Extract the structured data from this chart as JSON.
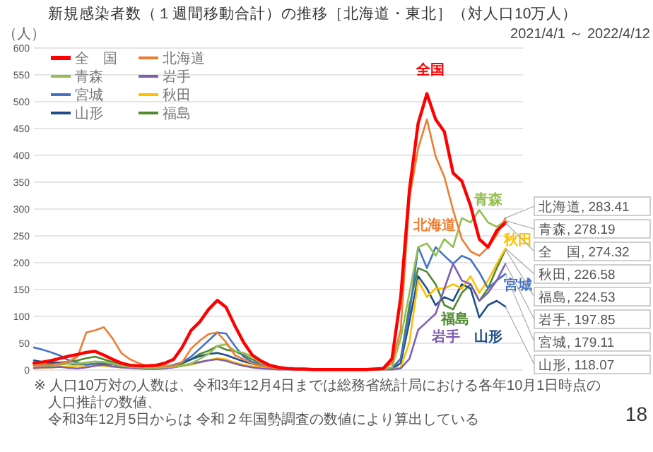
{
  "chart_data": {
    "type": "line",
    "title": "新規感染者数（１週間移動合計）の推移［北海道・東北］（対人口10万人）",
    "subtitle": "2021/4/1 ～ 2022/4/12",
    "ylabel": "（人）",
    "categories": [
      null,
      null,
      null,
      null,
      null,
      null,
      null,
      null,
      null,
      null,
      null,
      null,
      null,
      null,
      null,
      null,
      null,
      null,
      null,
      null,
      null,
      null,
      null,
      null,
      null,
      null,
      null,
      null,
      null,
      null,
      null,
      null,
      null,
      null,
      null,
      null,
      null,
      null,
      null,
      null,
      null,
      null,
      null,
      null,
      null,
      null,
      null,
      null,
      null,
      null,
      null,
      null,
      null,
      null,
      null
    ],
    "ylim": [
      0,
      600
    ],
    "yticks": [
      0,
      50,
      100,
      150,
      200,
      250,
      300,
      350,
      400,
      450,
      500,
      550,
      600
    ],
    "grid": "y",
    "legend": "top left",
    "tick_labels": "y",
    "series": [
      {
        "name": "全　国",
        "color": "#ff0000",
        "values": [
          13,
          15,
          18,
          22,
          26,
          29,
          33,
          35,
          28,
          20,
          13,
          9,
          8,
          8,
          9,
          13,
          20,
          43,
          74,
          90,
          113,
          130,
          117,
          83,
          52,
          28,
          17,
          9,
          5,
          3,
          2,
          2,
          1,
          1,
          1,
          1,
          1,
          1,
          1,
          2,
          3,
          21,
          136,
          336,
          460,
          515,
          467,
          444,
          367,
          352,
          306,
          244,
          229,
          260,
          274.32
        ],
        "value_labels": [
          null,
          null,
          null,
          null,
          null,
          null,
          null,
          null,
          null,
          null,
          null,
          null,
          null,
          null,
          null,
          null,
          null,
          null,
          null,
          null,
          null,
          null,
          null,
          null,
          null,
          null,
          null,
          null,
          null,
          null,
          null,
          null,
          null,
          null,
          null,
          null,
          null,
          null,
          null,
          null,
          null,
          null,
          null,
          null,
          null,
          null,
          null,
          null,
          null,
          null,
          null,
          null,
          null,
          null,
          "全　国, 274.32"
        ]
      },
      {
        "name": "北海道",
        "color": "#ed7d31",
        "values": [
          8,
          9,
          10,
          12,
          16,
          25,
          70,
          74,
          80,
          59,
          32,
          20,
          13,
          7,
          8,
          8,
          8,
          15,
          40,
          55,
          67,
          70,
          52,
          28,
          20,
          12,
          8,
          5,
          3,
          2,
          2,
          1,
          1,
          1,
          1,
          1,
          1,
          1,
          1,
          1,
          2,
          13,
          75,
          321,
          413,
          467,
          398,
          360,
          298,
          244,
          221,
          213,
          229,
          252,
          283.41
        ],
        "value_labels": [
          null,
          null,
          null,
          null,
          null,
          null,
          null,
          null,
          null,
          null,
          null,
          null,
          null,
          null,
          null,
          null,
          null,
          null,
          null,
          null,
          null,
          null,
          null,
          null,
          null,
          null,
          null,
          null,
          null,
          null,
          null,
          null,
          null,
          null,
          null,
          null,
          null,
          null,
          null,
          null,
          null,
          null,
          null,
          null,
          null,
          null,
          null,
          null,
          null,
          null,
          null,
          null,
          null,
          null,
          "北海道, 283.41"
        ]
      },
      {
        "name": "青森",
        "color": "#92c050",
        "values": [
          10,
          9,
          8,
          10,
          12,
          12,
          14,
          16,
          15,
          12,
          8,
          6,
          5,
          4,
          4,
          5,
          6,
          8,
          12,
          21,
          30,
          45,
          48,
          36,
          32,
          25,
          13,
          8,
          5,
          3,
          2,
          2,
          1,
          1,
          1,
          1,
          1,
          1,
          1,
          1,
          2,
          5,
          59,
          144,
          229,
          236,
          213,
          244,
          229,
          283,
          275,
          298,
          275,
          267,
          278.19
        ],
        "value_labels": [
          null,
          null,
          null,
          null,
          null,
          null,
          null,
          null,
          null,
          null,
          null,
          null,
          null,
          null,
          null,
          null,
          null,
          null,
          null,
          null,
          null,
          null,
          null,
          null,
          null,
          null,
          null,
          null,
          null,
          null,
          null,
          null,
          null,
          null,
          null,
          null,
          null,
          null,
          null,
          null,
          null,
          null,
          null,
          null,
          null,
          null,
          null,
          null,
          null,
          null,
          null,
          null,
          null,
          null,
          "青森, 278.19"
        ]
      },
      {
        "name": "岩手",
        "color": "#7f5fb0",
        "values": [
          4,
          5,
          5,
          6,
          4,
          3,
          5,
          8,
          10,
          7,
          5,
          4,
          3,
          2,
          2,
          3,
          5,
          8,
          12,
          15,
          18,
          20,
          17,
          12,
          8,
          5,
          3,
          2,
          1,
          1,
          1,
          1,
          1,
          1,
          1,
          1,
          1,
          1,
          1,
          1,
          1,
          1,
          3,
          21,
          75,
          90,
          105,
          152,
          198,
          167,
          160,
          129,
          144,
          167,
          197.85
        ],
        "value_labels": [
          null,
          null,
          null,
          null,
          null,
          null,
          null,
          null,
          null,
          null,
          null,
          null,
          null,
          null,
          null,
          null,
          null,
          null,
          null,
          null,
          null,
          null,
          null,
          null,
          null,
          null,
          null,
          null,
          null,
          null,
          null,
          null,
          null,
          null,
          null,
          null,
          null,
          null,
          null,
          null,
          null,
          null,
          null,
          null,
          null,
          null,
          null,
          null,
          null,
          null,
          null,
          null,
          null,
          null,
          "岩手, 197.85"
        ]
      },
      {
        "name": "宮城",
        "color": "#4472c4",
        "values": [
          42,
          38,
          33,
          27,
          18,
          14,
          10,
          12,
          15,
          12,
          8,
          5,
          4,
          3,
          4,
          5,
          10,
          15,
          25,
          40,
          55,
          70,
          68,
          45,
          25,
          15,
          10,
          6,
          4,
          2,
          2,
          1,
          1,
          1,
          2,
          2,
          1,
          1,
          1,
          1,
          2,
          4,
          21,
          105,
          229,
          190,
          229,
          213,
          198,
          213,
          206,
          182,
          152,
          167,
          179.11
        ],
        "value_labels": [
          null,
          null,
          null,
          null,
          null,
          null,
          null,
          null,
          null,
          null,
          null,
          null,
          null,
          null,
          null,
          null,
          null,
          null,
          null,
          null,
          null,
          null,
          null,
          null,
          null,
          null,
          null,
          null,
          null,
          null,
          null,
          null,
          null,
          null,
          null,
          null,
          null,
          null,
          null,
          null,
          null,
          null,
          null,
          null,
          null,
          null,
          null,
          null,
          null,
          null,
          null,
          null,
          null,
          null,
          "宮城, 179.11"
        ]
      },
      {
        "name": "秋田",
        "color": "#ffc000",
        "values": [
          3,
          4,
          5,
          6,
          7,
          8,
          8,
          9,
          8,
          6,
          5,
          4,
          3,
          3,
          4,
          5,
          6,
          8,
          10,
          14,
          18,
          22,
          20,
          14,
          10,
          7,
          5,
          3,
          2,
          2,
          1,
          1,
          1,
          1,
          1,
          1,
          1,
          1,
          1,
          1,
          1,
          2,
          5,
          52,
          167,
          136,
          152,
          152,
          160,
          152,
          175,
          144,
          167,
          198,
          226.58
        ],
        "value_labels": [
          null,
          null,
          null,
          null,
          null,
          null,
          null,
          null,
          null,
          null,
          null,
          null,
          null,
          null,
          null,
          null,
          null,
          null,
          null,
          null,
          null,
          null,
          null,
          null,
          null,
          null,
          null,
          null,
          null,
          null,
          null,
          null,
          null,
          null,
          null,
          null,
          null,
          null,
          null,
          null,
          null,
          null,
          null,
          null,
          null,
          null,
          null,
          null,
          null,
          null,
          null,
          null,
          null,
          null,
          "秋田, 226.58"
        ]
      },
      {
        "name": "山形",
        "color": "#1f4e89",
        "values": [
          18,
          15,
          14,
          14,
          12,
          10,
          10,
          11,
          12,
          11,
          8,
          6,
          5,
          4,
          4,
          5,
          8,
          14,
          20,
          26,
          30,
          32,
          28,
          22,
          16,
          12,
          8,
          5,
          3,
          2,
          2,
          1,
          1,
          1,
          1,
          1,
          1,
          1,
          1,
          1,
          2,
          2,
          13,
          90,
          175,
          152,
          121,
          136,
          129,
          160,
          152,
          98,
          121,
          129,
          118.07
        ],
        "value_labels": [
          null,
          null,
          null,
          null,
          null,
          null,
          null,
          null,
          null,
          null,
          null,
          null,
          null,
          null,
          null,
          null,
          null,
          null,
          null,
          null,
          null,
          null,
          null,
          null,
          null,
          null,
          null,
          null,
          null,
          null,
          null,
          null,
          null,
          null,
          null,
          null,
          null,
          null,
          null,
          null,
          null,
          null,
          null,
          null,
          null,
          null,
          null,
          null,
          null,
          null,
          null,
          null,
          null,
          null,
          "山形, 118.07"
        ]
      },
      {
        "name": "福島",
        "color": "#4e8a2e",
        "values": [
          8,
          10,
          12,
          14,
          16,
          18,
          22,
          25,
          20,
          15,
          10,
          8,
          6,
          5,
          5,
          6,
          8,
          12,
          20,
          30,
          36,
          45,
          38,
          35,
          28,
          20,
          12,
          8,
          5,
          3,
          2,
          2,
          1,
          1,
          1,
          1,
          1,
          1,
          1,
          1,
          2,
          3,
          21,
          121,
          190,
          183,
          160,
          121,
          113,
          144,
          160,
          129,
          152,
          190,
          224.53
        ],
        "value_labels": [
          null,
          null,
          null,
          null,
          null,
          null,
          null,
          null,
          null,
          null,
          null,
          null,
          null,
          null,
          null,
          null,
          null,
          null,
          null,
          null,
          null,
          null,
          null,
          null,
          null,
          null,
          null,
          null,
          null,
          null,
          null,
          null,
          null,
          null,
          null,
          null,
          null,
          null,
          null,
          null,
          null,
          null,
          null,
          null,
          null,
          null,
          null,
          null,
          null,
          null,
          null,
          null,
          null,
          null,
          "福島, 224.53"
        ]
      }
    ],
    "annotations": [
      "全国",
      "北海道",
      "青森",
      "岩手",
      "宮城",
      "秋田",
      "山形",
      "福島",
      "※ 人口10万対の人数は、令和3年12月4日までは総務省統計局における各年10月1日時点の人口推計の数値、",
      "令和3年12月5日からは 令和２年国勢調査の数値により算出している",
      "18"
    ]
  }
}
